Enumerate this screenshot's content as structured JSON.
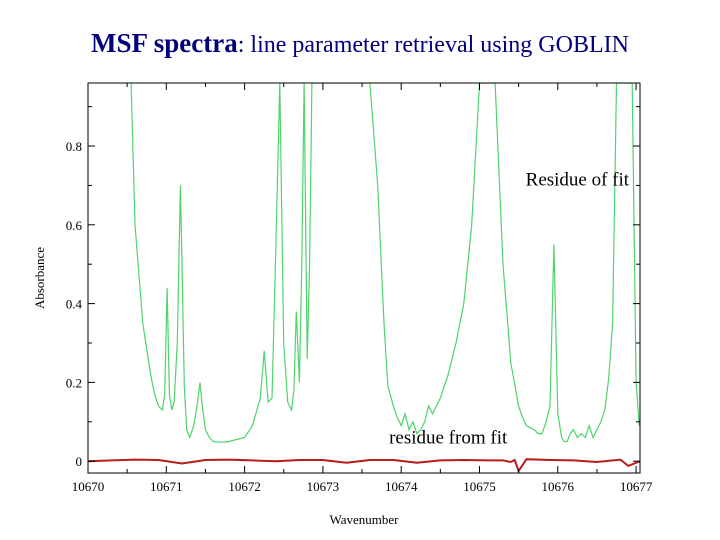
{
  "title": {
    "bold": "MSF spectra",
    "rest": ": line parameter retrieval using GOBLIN"
  },
  "chart_data": {
    "type": "line",
    "xlabel": "Wavenumber",
    "ylabel": "Absorbance",
    "xlim": [
      10670,
      10677.05
    ],
    "ylim": [
      -0.03,
      0.96
    ],
    "xticks": [
      "10670",
      "10671",
      "10672",
      "10673",
      "10674",
      "10675",
      "10676",
      "10677"
    ],
    "yticks": [
      "0",
      "0.2",
      "0.4",
      "0.6",
      "0.8"
    ],
    "grid": false,
    "annotations": [
      {
        "text": "Residue of fit",
        "x": 10676.25,
        "y": 0.7
      },
      {
        "text": "residue from fit",
        "x": 10674.6,
        "y": 0.045
      }
    ],
    "series": [
      {
        "color": "#4fd36a",
        "x": [
          10670.55,
          10670.6,
          10670.7,
          10670.8,
          10670.85,
          10670.9,
          10670.95,
          10670.98,
          10671.01,
          10671.04,
          10671.07,
          10671.1,
          10671.14,
          10671.18,
          10671.2,
          10671.23,
          10671.26,
          10671.3,
          10671.35,
          10671.4,
          10671.43,
          10671.46,
          10671.5,
          10671.55,
          10671.6,
          10671.7,
          10671.8,
          10672.0,
          10672.1,
          10672.2,
          10672.25,
          10672.3,
          10672.35,
          10672.4,
          10672.45,
          10672.5,
          10672.55,
          10672.6,
          10672.63,
          10672.66,
          10672.7,
          10672.73,
          10672.76,
          10672.8,
          10672.83,
          10672.86,
          10672.9,
          10672.95,
          10673.0,
          10673.1,
          10673.2,
          10673.3,
          10673.4,
          10673.5,
          10673.6,
          10673.7,
          10673.78,
          10673.83,
          10673.9,
          10673.95,
          10674.0,
          10674.05,
          10674.1,
          10674.15,
          10674.2,
          10674.25,
          10674.3,
          10674.35,
          10674.4,
          10674.5,
          10674.6,
          10674.7,
          10674.8,
          10674.9,
          10675.0,
          10675.1,
          10675.2,
          10675.3,
          10675.4,
          10675.5,
          10675.55,
          10675.6,
          10675.7,
          10675.75,
          10675.8,
          10675.85,
          10675.9,
          10675.95,
          10676.0,
          10676.05,
          10676.08,
          10676.1,
          10676.12,
          10676.14,
          10676.16,
          10676.2,
          10676.25,
          10676.3,
          10676.35,
          10676.4,
          10676.45,
          10676.5,
          10676.55,
          10676.6,
          10676.65,
          10676.7,
          10676.75,
          10676.8,
          10676.85,
          10676.9,
          10676.95,
          10677.0,
          10677.04
        ],
        "y": [
          0.96,
          0.6,
          0.35,
          0.22,
          0.17,
          0.14,
          0.13,
          0.17,
          0.44,
          0.17,
          0.13,
          0.15,
          0.3,
          0.7,
          0.5,
          0.19,
          0.08,
          0.06,
          0.09,
          0.15,
          0.2,
          0.14,
          0.08,
          0.06,
          0.05,
          0.048,
          0.05,
          0.06,
          0.09,
          0.16,
          0.28,
          0.15,
          0.16,
          0.55,
          0.96,
          0.3,
          0.15,
          0.13,
          0.18,
          0.38,
          0.2,
          0.5,
          0.96,
          0.26,
          0.5,
          0.96,
          0.96,
          0.96,
          0.96,
          0.96,
          0.96,
          0.96,
          0.96,
          0.96,
          0.96,
          0.7,
          0.35,
          0.19,
          0.14,
          0.11,
          0.09,
          0.12,
          0.08,
          0.1,
          0.07,
          0.08,
          0.1,
          0.14,
          0.12,
          0.16,
          0.22,
          0.3,
          0.4,
          0.6,
          0.96,
          0.96,
          0.96,
          0.5,
          0.25,
          0.14,
          0.11,
          0.09,
          0.08,
          0.07,
          0.07,
          0.1,
          0.14,
          0.55,
          0.12,
          0.06,
          0.05,
          0.05,
          0.05,
          0.06,
          0.07,
          0.08,
          0.06,
          0.07,
          0.06,
          0.09,
          0.06,
          0.08,
          0.1,
          0.13,
          0.21,
          0.35,
          0.96,
          0.96,
          0.96,
          0.96,
          0.96,
          0.2,
          0.09
        ]
      },
      {
        "color": "#b81c1c",
        "x": [
          10670.0,
          10670.3,
          10670.6,
          10670.9,
          10671.2,
          10671.5,
          10671.8,
          10672.1,
          10672.4,
          10672.7,
          10673.0,
          10673.3,
          10673.6,
          10673.9,
          10674.2,
          10674.5,
          10674.8,
          10675.1,
          10675.3,
          10675.4,
          10675.45,
          10675.5,
          10675.6,
          10675.9,
          10676.2,
          10676.5,
          10676.8,
          10676.9,
          10677.05
        ],
        "y": [
          0.0,
          0.002,
          0.004,
          0.003,
          -0.006,
          0.003,
          0.004,
          0.002,
          0.0,
          0.003,
          0.003,
          -0.004,
          0.003,
          0.003,
          -0.004,
          0.002,
          0.003,
          0.002,
          0.002,
          -0.002,
          0.003,
          -0.025,
          0.005,
          0.003,
          0.002,
          -0.002,
          0.004,
          -0.012,
          0.0
        ]
      }
    ]
  }
}
